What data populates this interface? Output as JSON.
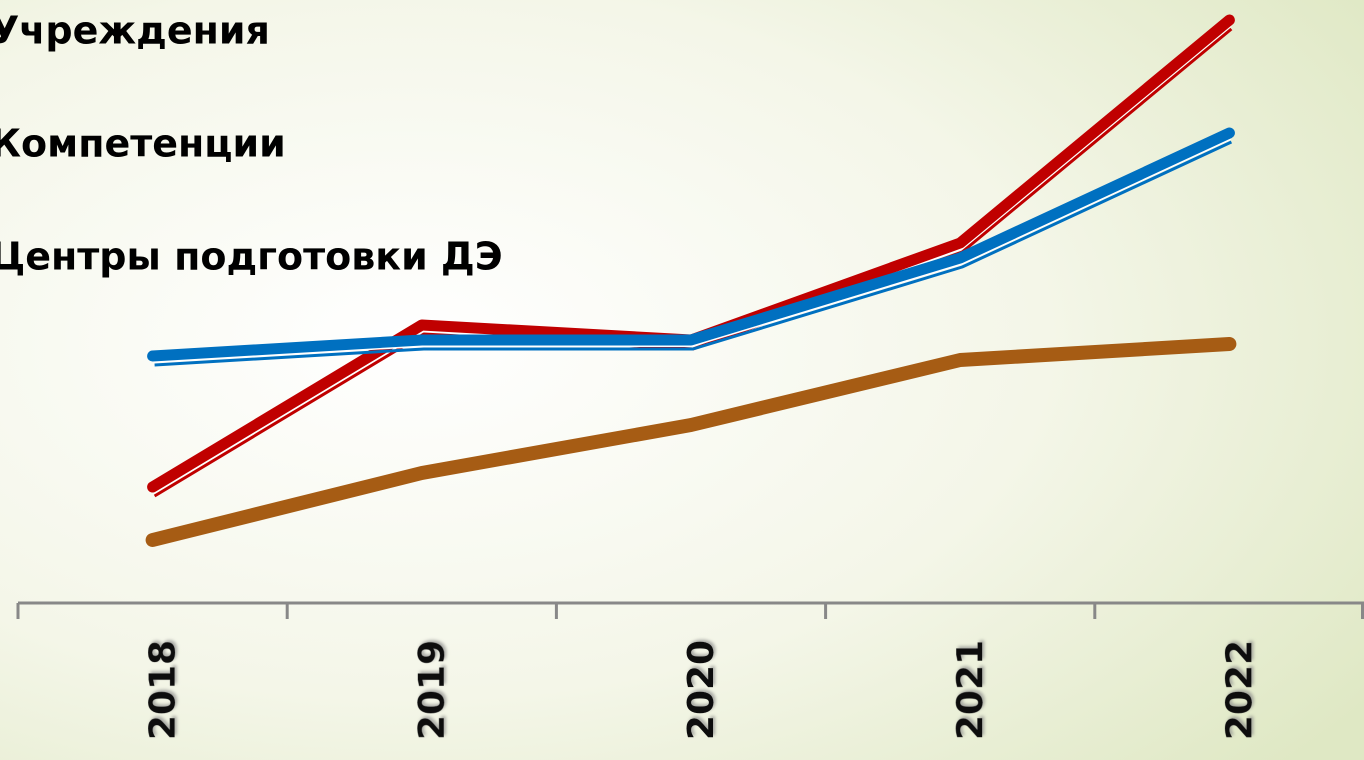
{
  "chart_data": {
    "type": "line",
    "categories": [
      "2018",
      "2019",
      "2020",
      "2021",
      "2022"
    ],
    "series": [
      {
        "name": "Учреждения",
        "color": "#c00000",
        "values": [
          116,
          278,
          263,
          360,
          583
        ]
      },
      {
        "name": "Компетенции",
        "color": "#0070c0",
        "values": [
          247,
          263,
          263,
          345,
          470
        ]
      },
      {
        "name": "Центры подготовки ДЭ",
        "color": "#a65c14",
        "values": [
          63,
          130,
          178,
          243,
          259
        ]
      }
    ],
    "ylim": [
      0,
      600
    ]
  }
}
